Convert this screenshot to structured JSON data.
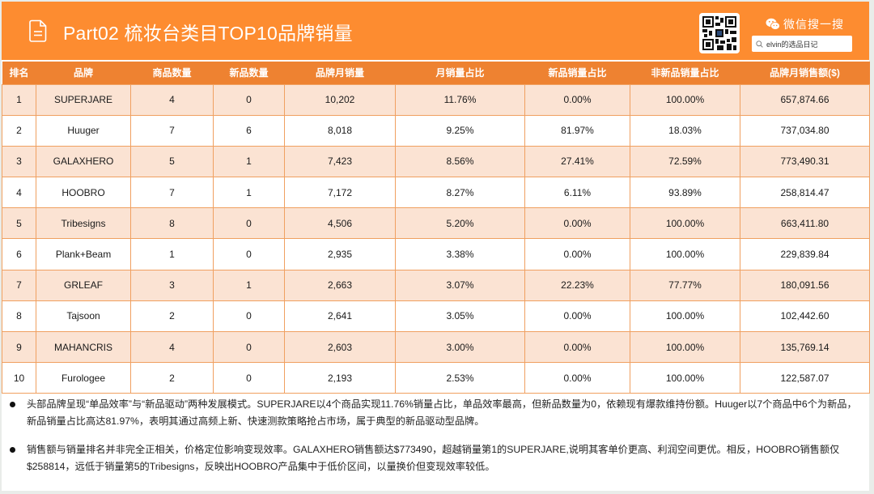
{
  "header": {
    "title": "Part02 梳妆台类目TOP10品牌销量",
    "icon": "document-icon",
    "wechat_label": "微信搜一搜",
    "search_text": "elvin的选品日记",
    "brand_color": "#fd8c30"
  },
  "table": {
    "columns": [
      "排名",
      "品牌",
      "商品数量",
      "新品数量",
      "品牌月销量",
      "月销量占比",
      "新品销量占比",
      "非新品销量占比",
      "品牌月销售额($)"
    ],
    "rows": [
      [
        "1",
        "SUPERJARE",
        "4",
        "0",
        "10,202",
        "11.76%",
        "0.00%",
        "100.00%",
        "657,874.66"
      ],
      [
        "2",
        "Huuger",
        "7",
        "6",
        "8,018",
        "9.25%",
        "81.97%",
        "18.03%",
        "737,034.80"
      ],
      [
        "3",
        "GALAXHERO",
        "5",
        "1",
        "7,423",
        "8.56%",
        "27.41%",
        "72.59%",
        "773,490.31"
      ],
      [
        "4",
        "HOOBRO",
        "7",
        "1",
        "7,172",
        "8.27%",
        "6.11%",
        "93.89%",
        "258,814.47"
      ],
      [
        "5",
        "Tribesigns",
        "8",
        "0",
        "4,506",
        "5.20%",
        "0.00%",
        "100.00%",
        "663,411.80"
      ],
      [
        "6",
        "Plank+Beam",
        "1",
        "0",
        "2,935",
        "3.38%",
        "0.00%",
        "100.00%",
        "229,839.84"
      ],
      [
        "7",
        "GRLEAF",
        "3",
        "1",
        "2,663",
        "3.07%",
        "22.23%",
        "77.77%",
        "180,091.56"
      ],
      [
        "8",
        "Tajsoon",
        "2",
        "0",
        "2,641",
        "3.05%",
        "0.00%",
        "100.00%",
        "102,442.60"
      ],
      [
        "9",
        "MAHANCRIS",
        "4",
        "0",
        "2,603",
        "3.00%",
        "0.00%",
        "100.00%",
        "135,769.14"
      ],
      [
        "10",
        "Furologee",
        "2",
        "0",
        "2,193",
        "2.53%",
        "0.00%",
        "100.00%",
        "122,587.07"
      ]
    ]
  },
  "notes": [
    "头部品牌呈现“单品效率”与“新品驱动”两种发展模式。SUPERJARE以4个商品实现11.76%销量占比，单品效率最高，但新品数量为0，依赖现有爆款维持份额。Huuger以7个商品中6个为新品，新品销量占比高达81.97%，表明其通过高频上新、快速测款策略抢占市场，属于典型的新品驱动型品牌。",
    "销售额与销量排名并非完全正相关，价格定位影响变现效率。GALAXHERO销售额达$773490，超越销量第1的SUPERJARE,说明其客单价更高、利润空间更优。相反，HOOBRO销售额仅$258814，远低于销量第5的Tribesigns，反映出HOOBRO产品集中于低价区间，以量换价但变现效率较低。"
  ]
}
